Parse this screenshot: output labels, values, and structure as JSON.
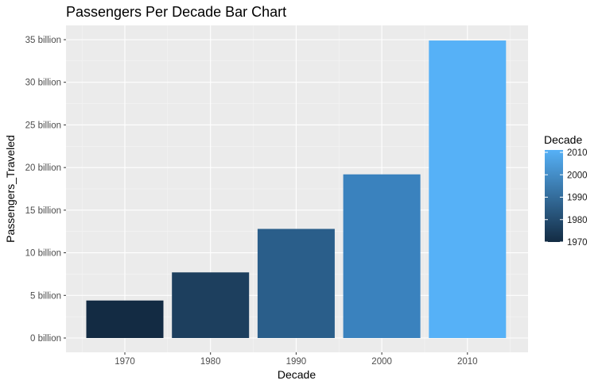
{
  "chart_data": {
    "type": "bar",
    "title": "Passengers Per Decade Bar Chart",
    "xlabel": "Decade",
    "ylabel": "Passengers_Traveled",
    "categories": [
      "1970",
      "1980",
      "1990",
      "2000",
      "2010"
    ],
    "values": [
      4.4,
      7.7,
      12.8,
      19.2,
      34.9
    ],
    "value_unit": "billion",
    "ylim": [
      0,
      35
    ],
    "y_ticks": [
      0,
      5,
      10,
      15,
      20,
      25,
      30,
      35
    ],
    "y_tick_labels": [
      "0 billion",
      "5 billion",
      "10 billion",
      "15 billion",
      "20 billion",
      "25 billion",
      "30 billion",
      "35 billion"
    ],
    "x_tick_labels": [
      "1970",
      "1980",
      "1990",
      "2000",
      "2010"
    ],
    "grid": true,
    "legend": {
      "title": "Decade",
      "placement": "right",
      "type": "colorbar",
      "range": [
        1970,
        2010
      ],
      "labels": [
        "2010",
        "2000",
        "1990",
        "1980",
        "1970"
      ],
      "color_low": "#132B43",
      "color_high": "#56B1F7"
    },
    "colors": {
      "panel_background": "#EBEBEB",
      "grid_major": "#FFFFFF",
      "bar_colors": [
        "#132B43",
        "#1D3F5E",
        "#2A5E8A",
        "#3A82BE",
        "#56B1F7"
      ]
    }
  }
}
